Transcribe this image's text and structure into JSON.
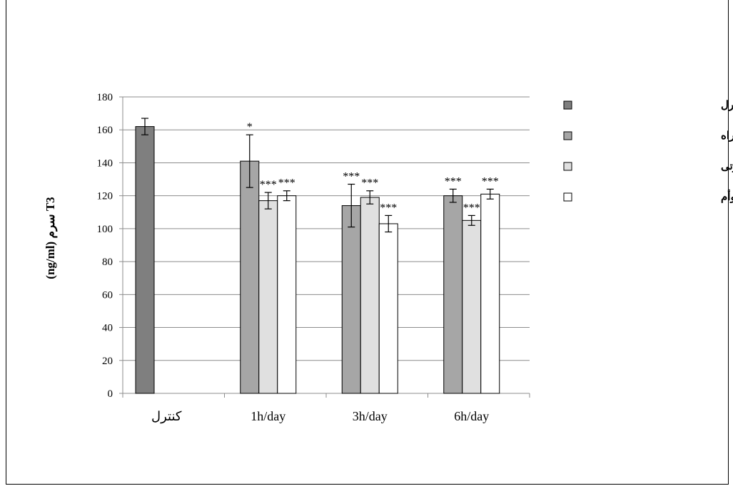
{
  "chart_data": {
    "type": "bar",
    "ylabel": "(ng/ml)  سرم  T3",
    "ylim": [
      0,
      180
    ],
    "yticks": [
      0,
      20,
      40,
      60,
      80,
      100,
      120,
      140,
      160,
      180
    ],
    "grid": true,
    "legend_position": "right",
    "groups": [
      {
        "label": "کنترل",
        "bars": [
          {
            "series": 0,
            "value": 162,
            "err": 5,
            "sig": ""
          }
        ]
      },
      {
        "label": "1h/day",
        "bars": [
          {
            "series": 1,
            "value": 141,
            "err": 16,
            "sig": "*"
          },
          {
            "series": 2,
            "value": 117,
            "err": 5,
            "sig": "***"
          },
          {
            "series": 3,
            "value": 120,
            "err": 3,
            "sig": "***"
          }
        ]
      },
      {
        "label": "3h/day",
        "bars": [
          {
            "series": 1,
            "value": 114,
            "err": 13,
            "sig": "***"
          },
          {
            "series": 2,
            "value": 119,
            "err": 4,
            "sig": "***"
          },
          {
            "series": 3,
            "value": 103,
            "err": 5,
            "sig": "***"
          }
        ]
      },
      {
        "label": "6h/day",
        "bars": [
          {
            "series": 1,
            "value": 120,
            "err": 4,
            "sig": "***"
          },
          {
            "series": 2,
            "value": 105,
            "err": 3,
            "sig": "***"
          },
          {
            "series": 3,
            "value": 121,
            "err": 3,
            "sig": "***"
          }
        ]
      }
    ],
    "series": [
      {
        "name": "کنترل",
        "color": "#7f7f7f"
      },
      {
        "name": "مواجهه با امواج تلفن همراه",
        "color": "#a6a6a6"
      },
      {
        "name": "مواجهه با استرس صوتی",
        "color": "#e0e0e0"
      },
      {
        "name": "مواجهه توأم",
        "color": "#ffffff"
      }
    ]
  }
}
